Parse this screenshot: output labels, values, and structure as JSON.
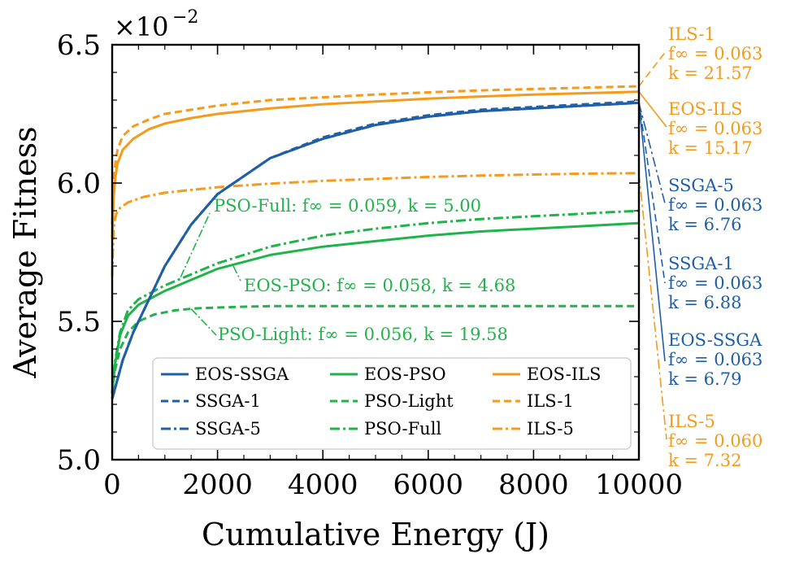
{
  "chart_data": {
    "type": "line",
    "title": "",
    "xlabel": "Cumulative Energy (J)",
    "ylabel": "Average Fitness",
    "y_multiplier_label": "×10",
    "y_multiplier_exponent": "−2",
    "xlim": [
      0,
      10000
    ],
    "ylim": [
      5.0,
      6.5
    ],
    "xticks": [
      "0",
      "2000",
      "4000",
      "6000",
      "8000",
      "10000"
    ],
    "yticks": [
      "5.0",
      "5.5",
      "6.0",
      "6.5"
    ],
    "grid": false,
    "legend_position": "lower-right",
    "colors": {
      "ssga": "#1f5fa6",
      "pso": "#1fb34a",
      "ils": "#f59a1c"
    },
    "series": [
      {
        "name": "EOS-SSGA",
        "group": "ssga",
        "style": "solid",
        "x": [
          0,
          200,
          400,
          700,
          1000,
          1500,
          2000,
          3000,
          4000,
          5000,
          6000,
          7000,
          8000,
          9000,
          10000
        ],
        "y": [
          5.22,
          5.36,
          5.46,
          5.58,
          5.7,
          5.85,
          5.96,
          6.09,
          6.16,
          6.21,
          6.24,
          6.26,
          6.27,
          6.28,
          6.29
        ]
      },
      {
        "name": "SSGA-1",
        "group": "ssga",
        "style": "dashed",
        "x": [
          0,
          200,
          400,
          700,
          1000,
          1500,
          2000,
          3000,
          4000,
          5000,
          6000,
          7000,
          8000,
          9000,
          10000
        ],
        "y": [
          5.22,
          5.36,
          5.46,
          5.58,
          5.7,
          5.85,
          5.96,
          6.09,
          6.165,
          6.215,
          6.245,
          6.265,
          6.275,
          6.285,
          6.295
        ]
      },
      {
        "name": "SSGA-5",
        "group": "ssga",
        "style": "dashdot",
        "x": [
          0,
          200,
          400,
          700,
          1000,
          1500,
          2000,
          3000,
          4000,
          5000,
          6000,
          7000,
          8000,
          9000,
          10000
        ],
        "y": [
          5.22,
          5.36,
          5.46,
          5.58,
          5.7,
          5.85,
          5.96,
          6.09,
          6.16,
          6.21,
          6.24,
          6.26,
          6.27,
          6.28,
          6.29
        ]
      },
      {
        "name": "EOS-PSO",
        "group": "pso",
        "style": "solid",
        "x": [
          0,
          50,
          150,
          300,
          500,
          1000,
          1500,
          2000,
          3000,
          4000,
          5000,
          6000,
          7000,
          8000,
          9000,
          10000
        ],
        "y": [
          5.24,
          5.34,
          5.45,
          5.52,
          5.56,
          5.61,
          5.65,
          5.69,
          5.74,
          5.77,
          5.79,
          5.81,
          5.825,
          5.835,
          5.845,
          5.855
        ]
      },
      {
        "name": "PSO-Light",
        "group": "pso",
        "style": "dashed",
        "x": [
          0,
          50,
          150,
          300,
          500,
          800,
          1200,
          1600,
          2000,
          2500,
          3000,
          4000,
          6000,
          8000,
          10000
        ],
        "y": [
          5.24,
          5.32,
          5.4,
          5.46,
          5.5,
          5.525,
          5.54,
          5.547,
          5.55,
          5.553,
          5.555,
          5.555,
          5.555,
          5.555,
          5.555
        ]
      },
      {
        "name": "PSO-Full",
        "group": "pso",
        "style": "dashdot",
        "x": [
          0,
          50,
          150,
          300,
          500,
          1000,
          1500,
          2000,
          3000,
          4000,
          5000,
          6000,
          7000,
          8000,
          9000,
          10000
        ],
        "y": [
          5.24,
          5.35,
          5.46,
          5.54,
          5.58,
          5.63,
          5.67,
          5.71,
          5.77,
          5.81,
          5.835,
          5.855,
          5.87,
          5.88,
          5.89,
          5.9
        ]
      },
      {
        "name": "EOS-ILS",
        "group": "ils",
        "style": "solid",
        "x": [
          0,
          30,
          60,
          100,
          200,
          400,
          700,
          1000,
          1500,
          2000,
          3000,
          4000,
          5000,
          6000,
          7000,
          8000,
          9000,
          10000
        ],
        "y": [
          5.8,
          5.95,
          6.02,
          6.07,
          6.12,
          6.16,
          6.195,
          6.215,
          6.235,
          6.25,
          6.27,
          6.285,
          6.295,
          6.305,
          6.313,
          6.32,
          6.325,
          6.33
        ]
      },
      {
        "name": "ILS-1",
        "group": "ils",
        "style": "dashed",
        "x": [
          0,
          30,
          60,
          100,
          200,
          400,
          700,
          1000,
          1500,
          2000,
          3000,
          4000,
          5000,
          6000,
          7000,
          8000,
          9000,
          10000
        ],
        "y": [
          5.85,
          6.0,
          6.07,
          6.12,
          6.17,
          6.205,
          6.23,
          6.25,
          6.265,
          6.28,
          6.3,
          6.31,
          6.32,
          6.328,
          6.335,
          6.34,
          6.345,
          6.35
        ]
      },
      {
        "name": "ILS-5",
        "group": "ils",
        "style": "dashdot",
        "x": [
          0,
          20,
          40,
          80,
          150,
          300,
          600,
          1000,
          1500,
          2000,
          3000,
          4000,
          5000,
          6000,
          7000,
          8000,
          9000,
          10000
        ],
        "y": [
          5.66,
          5.8,
          5.86,
          5.89,
          5.91,
          5.93,
          5.95,
          5.965,
          5.975,
          5.985,
          5.998,
          6.008,
          6.015,
          6.022,
          6.027,
          6.031,
          6.034,
          6.036
        ]
      }
    ],
    "inline_annotations": [
      {
        "series": "PSO-Full",
        "text": "PSO-Full:  f∞ = 0.059,  k = 5.00",
        "point": [
          1300,
          5.66
        ]
      },
      {
        "series": "EOS-PSO",
        "text": "EOS-PSO:  f∞ = 0.058,  k = 4.68",
        "point": [
          2300,
          5.7
        ]
      },
      {
        "series": "PSO-Light",
        "text": "PSO-Light:  f∞ = 0.056,  k = 19.58",
        "point": [
          1500,
          5.545
        ]
      }
    ],
    "side_annotations": [
      {
        "series": "ILS-1",
        "group": "ils",
        "name": "ILS-1",
        "finf": "f∞ = 0.063",
        "k": "k = 21.57",
        "y_end": 6.35
      },
      {
        "series": "EOS-ILS",
        "group": "ils",
        "name": "EOS-ILS",
        "finf": "f∞ = 0.063",
        "k": "k = 15.17",
        "y_end": 6.33
      },
      {
        "series": "SSGA-5",
        "group": "ssga",
        "name": "SSGA-5",
        "finf": "f∞ = 0.063",
        "k": "k = 6.76",
        "y_end": 6.29
      },
      {
        "series": "SSGA-1",
        "group": "ssga",
        "name": "SSGA-1",
        "finf": "f∞ = 0.063",
        "k": "k = 6.88",
        "y_end": 6.295
      },
      {
        "series": "EOS-SSGA",
        "group": "ssga",
        "name": "EOS-SSGA",
        "finf": "f∞ = 0.063",
        "k": "k = 6.79",
        "y_end": 6.29
      },
      {
        "series": "ILS-5",
        "group": "ils",
        "name": "ILS-5",
        "finf": "f∞ = 0.060",
        "k": "k = 7.32",
        "y_end": 6.036
      }
    ],
    "legend_layout": [
      [
        "EOS-SSGA",
        "EOS-PSO",
        "EOS-ILS"
      ],
      [
        "SSGA-1",
        "PSO-Light",
        "ILS-1"
      ],
      [
        "SSGA-5",
        "PSO-Full",
        "ILS-5"
      ]
    ]
  }
}
